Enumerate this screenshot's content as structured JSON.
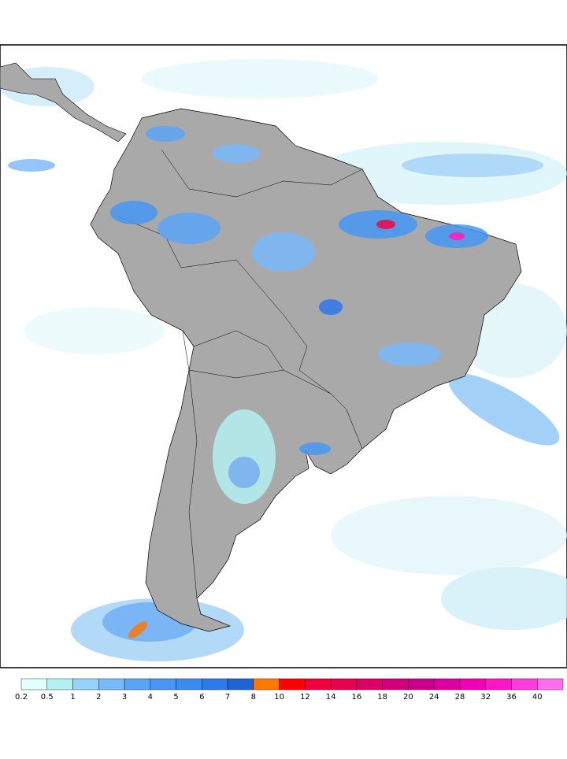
{
  "colorbar": {
    "levels": [
      0.2,
      0.5,
      1,
      2,
      3,
      4,
      5,
      6,
      7,
      8,
      10,
      12,
      14,
      16,
      18,
      20,
      24,
      28,
      32,
      36,
      40
    ],
    "colors": [
      "#e1ffff",
      "#b4f0f0",
      "#96d2fa",
      "#78b9fa",
      "#5aa5f5",
      "#4696f5",
      "#3c8cf0",
      "#2d78eb",
      "#1e64d2",
      "#ff7800",
      "#ff0000",
      "#f0003c",
      "#e60050",
      "#dc0064",
      "#d20078",
      "#c8008c",
      "#dc00a0",
      "#f000b4",
      "#ff14c8",
      "#ff3cdc",
      "#ff6ef0"
    ]
  }
}
